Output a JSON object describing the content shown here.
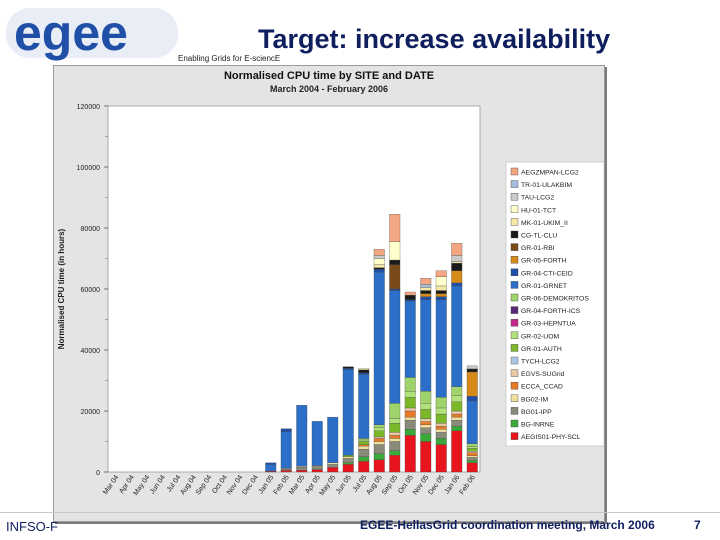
{
  "header": {
    "logo_text": "egee",
    "tagline": "Enabling Grids for E-sciencE",
    "slide_title": "Target: increase availability"
  },
  "footer": {
    "left": "INFSO-F",
    "center": "EGEE-HellasGrid coordination meeting, March 2006",
    "page": "7"
  },
  "colors": {
    "title": "#0f1f5e",
    "logo_blue": "#1f4fa6",
    "chart_bg": "#e4e4e4"
  },
  "chart_data": {
    "type": "bar",
    "stacked": true,
    "title": "Normalised CPU time by SITE and DATE",
    "subtitle": "March 2004 - February 2006",
    "ylabel": "Normalised CPU time (in hours)",
    "xlabel": "",
    "ylim": [
      0,
      120000
    ],
    "yticks": [
      "0",
      "20000",
      "40000",
      "60000",
      "80000",
      "100000",
      "120000"
    ],
    "categories": [
      "Mar 04",
      "Apr 04",
      "May 04",
      "Jun 04",
      "Jul 04",
      "Aug 04",
      "Sep 04",
      "Oct 04",
      "Nov 04",
      "Dec 04",
      "Jan 05",
      "Feb 05",
      "Mar 05",
      "Apr 05",
      "May 05",
      "Jun 05",
      "Jul 05",
      "Aug 05",
      "Sep 05",
      "Oct 05",
      "Nov 05",
      "Dec 05",
      "Jan 06",
      "Feb 06"
    ],
    "legend": [
      {
        "name": "AEGZMPAN-LCG2",
        "color": "#f4a582"
      },
      {
        "name": "TR-01-ULAKBIM",
        "color": "#a6bddb"
      },
      {
        "name": "TAU-LCG2",
        "color": "#c9c9c9"
      },
      {
        "name": "HU-01-TCT",
        "color": "#ffffcc"
      },
      {
        "name": "MK-01-UKIM_II",
        "color": "#f6e8a6"
      },
      {
        "name": "CG-TL-CLU",
        "color": "#1a1a1a"
      },
      {
        "name": "GR-01-RBI",
        "color": "#7a4a1a"
      },
      {
        "name": "GR-05-FORTH",
        "color": "#d68a1a"
      },
      {
        "name": "GR-04-CTI-CEID",
        "color": "#1f4fa6"
      },
      {
        "name": "GR-01-GRNET",
        "color": "#2b6fc9"
      },
      {
        "name": "GR-06-DEMOKRITOS",
        "color": "#9fd36b"
      },
      {
        "name": "GR-04-FORTH-ICS",
        "color": "#5a2a7a"
      },
      {
        "name": "GR-03-HEPNTUA",
        "color": "#c22a8a"
      },
      {
        "name": "GR-02-UOM",
        "color": "#b2e07a"
      },
      {
        "name": "GR-01-AUTH",
        "color": "#7ab82a"
      },
      {
        "name": "TYCH-LCG2",
        "color": "#aac8e6"
      },
      {
        "name": "EGVS-SUGrid",
        "color": "#e6c8a6"
      },
      {
        "name": "ECCA_CCAD",
        "color": "#e87a2a"
      },
      {
        "name": "BG02-IM",
        "color": "#f0e0a0"
      },
      {
        "name": "BG01-IPP",
        "color": "#8a8a7a"
      },
      {
        "name": "BG-INRNE",
        "color": "#3aa83a"
      },
      {
        "name": "AEGIS01-PHY-SCL",
        "color": "#e8141e"
      }
    ],
    "series": [
      {
        "name": "AEGIS01-PHY-SCL",
        "values": [
          0,
          0,
          0,
          0,
          0,
          0,
          0,
          0,
          0,
          0,
          300,
          500,
          600,
          800,
          1500,
          2500,
          3500,
          4000,
          5500,
          12000,
          10000,
          9000,
          13500,
          3000
        ]
      },
      {
        "name": "BG-INRNE",
        "values": [
          0,
          0,
          0,
          0,
          0,
          0,
          0,
          0,
          0,
          0,
          0,
          0,
          0,
          0,
          0,
          500,
          1500,
          2000,
          1500,
          2000,
          2500,
          2000,
          1500,
          800
        ]
      },
      {
        "name": "BG01-IPP",
        "values": [
          0,
          0,
          0,
          0,
          0,
          0,
          0,
          0,
          0,
          0,
          0,
          500,
          1000,
          1000,
          1000,
          1500,
          2500,
          3000,
          3000,
          3000,
          2000,
          2000,
          2000,
          1000
        ]
      },
      {
        "name": "BG02-IM",
        "values": [
          0,
          0,
          0,
          0,
          0,
          0,
          0,
          0,
          0,
          0,
          0,
          200,
          300,
          300,
          500,
          500,
          1000,
          1000,
          1000,
          1000,
          1000,
          1000,
          1000,
          500
        ]
      },
      {
        "name": "ECCA_CCAD",
        "values": [
          0,
          0,
          0,
          0,
          0,
          0,
          0,
          0,
          0,
          0,
          0,
          0,
          0,
          0,
          0,
          0,
          500,
          1000,
          1000,
          2000,
          1000,
          1000,
          1000,
          1000
        ]
      },
      {
        "name": "EGVS-SUGrid",
        "values": [
          0,
          0,
          0,
          0,
          0,
          0,
          0,
          0,
          0,
          0,
          0,
          0,
          0,
          0,
          0,
          0,
          0,
          500,
          1000,
          1000,
          1000,
          1000,
          1000,
          500
        ]
      },
      {
        "name": "GR-01-AUTH",
        "values": [
          0,
          0,
          0,
          0,
          0,
          0,
          0,
          0,
          0,
          0,
          0,
          0,
          0,
          0,
          0,
          500,
          1000,
          2000,
          3000,
          3500,
          3000,
          3000,
          3000,
          1000
        ]
      },
      {
        "name": "GR-02-UOM",
        "values": [
          0,
          0,
          0,
          0,
          0,
          0,
          0,
          0,
          0,
          0,
          0,
          0,
          0,
          0,
          0,
          0,
          500,
          1000,
          1500,
          2000,
          2000,
          2000,
          2000,
          500
        ]
      },
      {
        "name": "GR-06-DEMOKRITOS",
        "values": [
          0,
          0,
          0,
          0,
          0,
          0,
          0,
          0,
          0,
          0,
          0,
          0,
          0,
          0,
          0,
          0,
          500,
          1000,
          5000,
          4500,
          4000,
          3500,
          3000,
          1000
        ]
      },
      {
        "name": "GR-01-GRNET",
        "values": [
          0,
          0,
          0,
          0,
          0,
          0,
          0,
          0,
          0,
          0,
          2200,
          12000,
          20000,
          14500,
          15000,
          28000,
          21000,
          50000,
          37000,
          25000,
          30000,
          32000,
          33000,
          14000
        ]
      },
      {
        "name": "GR-04-CTI-CEID",
        "values": [
          0,
          0,
          0,
          0,
          0,
          0,
          0,
          0,
          0,
          0,
          500,
          1000,
          0,
          0,
          0,
          500,
          500,
          1000,
          500,
          500,
          1000,
          1000,
          1000,
          1500
        ]
      },
      {
        "name": "GR-05-FORTH",
        "values": [
          0,
          0,
          0,
          0,
          0,
          0,
          0,
          0,
          0,
          0,
          0,
          0,
          0,
          0,
          0,
          0,
          0,
          0,
          0,
          0,
          1000,
          1000,
          4000,
          8000
        ]
      },
      {
        "name": "GR-01-RBI",
        "values": [
          0,
          0,
          0,
          0,
          0,
          0,
          0,
          0,
          0,
          0,
          0,
          0,
          0,
          0,
          0,
          0,
          0,
          0,
          8000,
          0,
          0,
          0,
          0,
          0
        ]
      },
      {
        "name": "CG-TL-CLU",
        "values": [
          0,
          0,
          0,
          0,
          0,
          0,
          0,
          0,
          0,
          0,
          0,
          0,
          0,
          0,
          0,
          500,
          1000,
          500,
          1500,
          1500,
          1000,
          1000,
          2500,
          1000
        ]
      },
      {
        "name": "MK-01-UKIM_II",
        "values": [
          0,
          0,
          0,
          0,
          0,
          0,
          0,
          0,
          0,
          0,
          0,
          0,
          0,
          0,
          0,
          0,
          0,
          1000,
          0,
          0,
          1000,
          1500,
          500,
          0
        ]
      },
      {
        "name": "HU-01-TCT",
        "values": [
          0,
          0,
          0,
          0,
          0,
          0,
          0,
          0,
          0,
          0,
          0,
          0,
          0,
          0,
          0,
          0,
          500,
          2000,
          6000,
          0,
          0,
          3000,
          0,
          0
        ]
      },
      {
        "name": "TAU-LCG2",
        "values": [
          0,
          0,
          0,
          0,
          0,
          0,
          0,
          0,
          0,
          0,
          0,
          0,
          0,
          0,
          0,
          0,
          0,
          1000,
          0,
          0,
          0,
          0,
          2000,
          1000
        ]
      },
      {
        "name": "TR-01-ULAKBIM",
        "values": [
          0,
          0,
          0,
          0,
          0,
          0,
          0,
          0,
          0,
          0,
          0,
          0,
          0,
          0,
          0,
          0,
          0,
          0,
          0,
          0,
          1000,
          0,
          0,
          0
        ]
      },
      {
        "name": "AEGZMPAN-LCG2",
        "values": [
          0,
          0,
          0,
          0,
          0,
          0,
          0,
          0,
          0,
          0,
          0,
          0,
          0,
          0,
          0,
          0,
          0,
          2000,
          9000,
          1000,
          2000,
          2000,
          4000,
          0
        ]
      }
    ]
  }
}
